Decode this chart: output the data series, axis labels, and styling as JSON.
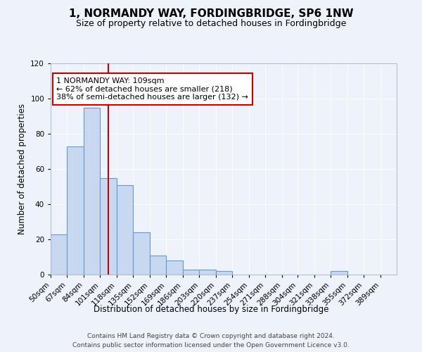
{
  "title": "1, NORMANDY WAY, FORDINGBRIDGE, SP6 1NW",
  "subtitle": "Size of property relative to detached houses in Fordingbridge",
  "xlabel": "Distribution of detached houses by size in Fordingbridge",
  "ylabel": "Number of detached properties",
  "bin_labels": [
    "50sqm",
    "67sqm",
    "84sqm",
    "101sqm",
    "118sqm",
    "135sqm",
    "152sqm",
    "169sqm",
    "186sqm",
    "203sqm",
    "220sqm",
    "237sqm",
    "254sqm",
    "271sqm",
    "288sqm",
    "304sqm",
    "321sqm",
    "338sqm",
    "355sqm",
    "372sqm",
    "389sqm"
  ],
  "bin_edges": [
    50,
    67,
    84,
    101,
    118,
    135,
    152,
    169,
    186,
    203,
    220,
    237,
    254,
    271,
    288,
    304,
    321,
    338,
    355,
    372,
    389
  ],
  "bar_heights": [
    23,
    73,
    95,
    55,
    51,
    24,
    11,
    8,
    3,
    3,
    2,
    0,
    0,
    0,
    0,
    0,
    0,
    2,
    0,
    0,
    0
  ],
  "bar_color": "#c8d8f0",
  "bar_edge_color": "#6699cc",
  "vline_x": 109,
  "vline_color": "#cc0000",
  "annotation_line1": "1 NORMANDY WAY: 109sqm",
  "annotation_line2": "← 62% of detached houses are smaller (218)",
  "annotation_line3": "38% of semi-detached houses are larger (132) →",
  "annotation_box_color": "#ffffff",
  "annotation_box_edge_color": "#cc0000",
  "ylim": [
    0,
    120
  ],
  "background_color": "#eef2fb",
  "grid_color": "#ffffff",
  "footer_line1": "Contains HM Land Registry data © Crown copyright and database right 2024.",
  "footer_line2": "Contains public sector information licensed under the Open Government Licence v3.0.",
  "title_fontsize": 11,
  "subtitle_fontsize": 9,
  "axis_label_fontsize": 8.5,
  "tick_fontsize": 7.5,
  "annotation_fontsize": 8,
  "footer_fontsize": 6.5
}
